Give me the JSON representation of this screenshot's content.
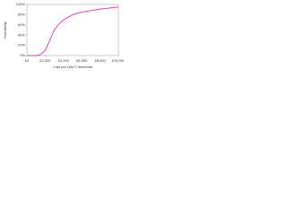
{
  "chart_data": {
    "type": "line",
    "x_label": "Cost per QALY threshold",
    "y_label": "Probability",
    "x": [
      0,
      1000,
      1500,
      2000,
      2500,
      3000,
      3500,
      4000,
      5000,
      6000,
      7000,
      8000,
      9000,
      10000
    ],
    "values": [
      0,
      0,
      2,
      10,
      30,
      50,
      62,
      70,
      80,
      85,
      88,
      91,
      93,
      95
    ],
    "color": "#e040c0",
    "xlim": [
      0,
      10000
    ],
    "xticks": [
      {
        "value": 0,
        "label": "£0"
      },
      {
        "value": 2000,
        "label": "£2,000"
      },
      {
        "value": 4000,
        "label": "£4,000"
      },
      {
        "value": 6000,
        "label": "£6,000"
      },
      {
        "value": 8000,
        "label": "£8,000"
      },
      {
        "value": 10000,
        "label": "£10,000"
      }
    ],
    "ylim": [
      0,
      100
    ],
    "yticks": [
      {
        "value": 0,
        "label": "0%"
      },
      {
        "value": 20,
        "label": "20%"
      },
      {
        "value": 40,
        "label": "40%"
      },
      {
        "value": 60,
        "label": "60%"
      },
      {
        "value": 80,
        "label": "80%"
      },
      {
        "value": 100,
        "label": "100%"
      }
    ],
    "grid": false
  }
}
